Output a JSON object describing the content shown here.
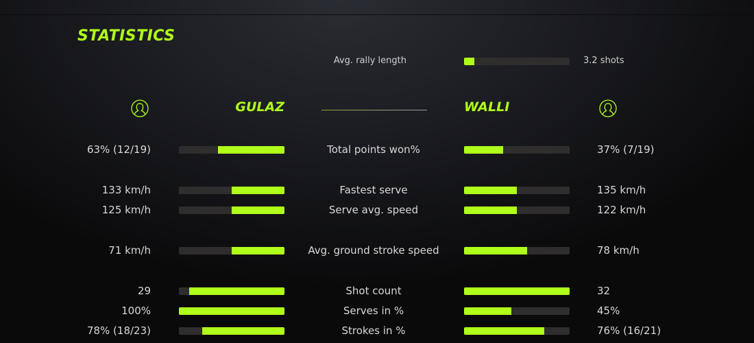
{
  "title": "STATISTICS",
  "accent": "#b0ff1a",
  "rally": {
    "label": "Avg. rally length",
    "value": "3.2 shots",
    "fill": 0.1
  },
  "players": {
    "left": {
      "name": "GULAZ",
      "icon": "user-icon"
    },
    "right": {
      "name": "WALLI",
      "icon": "user-icon"
    }
  },
  "stats": [
    {
      "label": "Total points won%",
      "left": "63% (12/19)",
      "right": "37% (7/19)",
      "left_fill": 0.63,
      "right_fill": 0.37
    },
    {
      "label": "Fastest serve",
      "left": "133 km/h",
      "right": "135 km/h",
      "left_fill": 0.5,
      "right_fill": 0.5
    },
    {
      "label": "Serve avg. speed",
      "left": "125 km/h",
      "right": "122 km/h",
      "left_fill": 0.5,
      "right_fill": 0.5
    },
    {
      "label": "Avg. ground stroke speed",
      "left": "71 km/h",
      "right": "78 km/h",
      "left_fill": 0.5,
      "right_fill": 0.6
    },
    {
      "label": "Shot count",
      "left": "29",
      "right": "32",
      "left_fill": 0.9,
      "right_fill": 1.0
    },
    {
      "label": "Serves in %",
      "left": "100%",
      "right": "45%",
      "left_fill": 1.0,
      "right_fill": 0.45
    },
    {
      "label": "Strokes in %",
      "left": "78% (18/23)",
      "right": "76% (16/21)",
      "left_fill": 0.78,
      "right_fill": 0.76
    }
  ]
}
